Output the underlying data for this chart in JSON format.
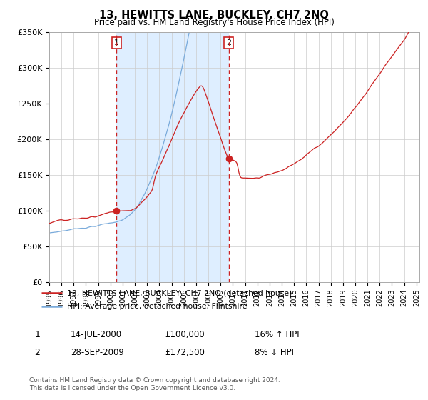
{
  "title": "13, HEWITTS LANE, BUCKLEY, CH7 2NQ",
  "subtitle": "Price paid vs. HM Land Registry's House Price Index (HPI)",
  "legend_line1": "13, HEWITTS LANE, BUCKLEY, CH7 2NQ (detached house)",
  "legend_line2": "HPI: Average price, detached house, Flintshire",
  "transaction1_date": "14-JUL-2000",
  "transaction1_price": "£100,000",
  "transaction1_hpi": "16% ↑ HPI",
  "transaction2_date": "28-SEP-2009",
  "transaction2_price": "£172,500",
  "transaction2_hpi": "8% ↓ HPI",
  "footer_line1": "Contains HM Land Registry data © Crown copyright and database right 2024.",
  "footer_line2": "This data is licensed under the Open Government Licence v3.0.",
  "hpi_color": "#7aabdb",
  "house_color": "#cc2222",
  "shade_color": "#deeeff",
  "dot_color": "#cc2222",
  "vline_color": "#cc2222",
  "box_edge_color": "#cc2222",
  "ylim": [
    0,
    350000
  ],
  "yticks": [
    0,
    50000,
    100000,
    150000,
    200000,
    250000,
    300000,
    350000
  ],
  "ytick_labels": [
    "£0",
    "£50K",
    "£100K",
    "£150K",
    "£200K",
    "£250K",
    "£300K",
    "£350K"
  ],
  "background_color": "#ffffff",
  "grid_color": "#cccccc"
}
